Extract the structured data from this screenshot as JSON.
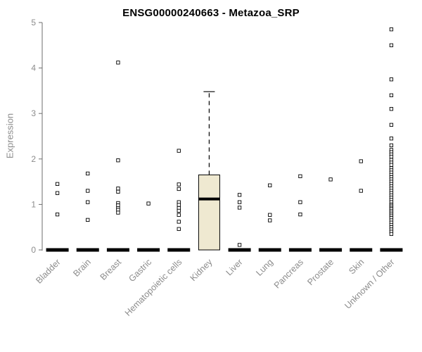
{
  "chart_data": {
    "type": "boxplot",
    "title": "ENSG00000240663 - Metazoa_SRP",
    "ylabel": "Expression",
    "ylim": [
      0,
      5
    ],
    "yticks": [
      0,
      1,
      2,
      3,
      4,
      5
    ],
    "grid": false,
    "legend": "none",
    "box_fill_color": "#EFE9D1",
    "box_stroke_color": "#000000",
    "axis_color": "#6e6e6e",
    "label_color": "#8c8c8c",
    "title_color": "#000000",
    "categories": [
      "Bladder",
      "Brain",
      "Breast",
      "Gastric",
      "Hematopoietic cells",
      "Kidney",
      "Liver",
      "Lung",
      "Pancreas",
      "Prostate",
      "Skin",
      "Unknown / Other"
    ],
    "boxes": [
      {
        "category": "Bladder",
        "median": 0,
        "q1": 0,
        "q3": 0,
        "whisker_low": 0,
        "whisker_high": 0,
        "outliers": [
          0.78,
          1.25,
          1.45
        ]
      },
      {
        "category": "Brain",
        "median": 0,
        "q1": 0,
        "q3": 0,
        "whisker_low": 0,
        "whisker_high": 0,
        "outliers": [
          0.66,
          1.05,
          1.3,
          1.68
        ]
      },
      {
        "category": "Breast",
        "median": 0,
        "q1": 0,
        "q3": 0,
        "whisker_low": 0,
        "whisker_high": 0,
        "outliers": [
          4.12,
          1.97,
          1.35,
          1.28,
          1.03,
          0.98,
          0.92,
          0.88,
          0.82
        ]
      },
      {
        "category": "Gastric",
        "median": 0,
        "q1": 0,
        "q3": 0,
        "whisker_low": 0,
        "whisker_high": 0,
        "outliers": [
          1.02
        ]
      },
      {
        "category": "Hematopoietic cells",
        "median": 0,
        "q1": 0,
        "q3": 0,
        "whisker_low": 0,
        "whisker_high": 0,
        "outliers": [
          2.18,
          1.44,
          1.34,
          1.05,
          0.99,
          0.92,
          0.86,
          0.77,
          0.62,
          0.46
        ]
      },
      {
        "category": "Kidney",
        "median": 1.12,
        "q1": 0,
        "q3": 1.65,
        "whisker_low": 0,
        "whisker_high": 3.48,
        "outliers": []
      },
      {
        "category": "Liver",
        "median": 0,
        "q1": 0,
        "q3": 0,
        "whisker_low": 0,
        "whisker_high": 0,
        "outliers": [
          1.21,
          1.05,
          0.93,
          0.11
        ]
      },
      {
        "category": "Lung",
        "median": 0,
        "q1": 0,
        "q3": 0,
        "whisker_low": 0,
        "whisker_high": 0,
        "outliers": [
          1.42,
          0.77,
          0.65
        ]
      },
      {
        "category": "Pancreas",
        "median": 0,
        "q1": 0,
        "q3": 0,
        "whisker_low": 0,
        "whisker_high": 0,
        "outliers": [
          1.62,
          1.05,
          0.78
        ]
      },
      {
        "category": "Prostate",
        "median": 0,
        "q1": 0,
        "q3": 0,
        "whisker_low": 0,
        "whisker_high": 0,
        "outliers": [
          1.55
        ]
      },
      {
        "category": "Skin",
        "median": 0,
        "q1": 0,
        "q3": 0,
        "whisker_low": 0,
        "whisker_high": 0,
        "outliers": [
          1.95,
          1.3
        ]
      },
      {
        "category": "Unknown / Other",
        "median": 0,
        "q1": 0,
        "q3": 0,
        "whisker_low": 0,
        "whisker_high": 0,
        "outliers": [
          4.85,
          4.5,
          3.75,
          3.4,
          3.1,
          2.75,
          2.45,
          2.3,
          2.2,
          2.15,
          2.1,
          2.05,
          1.98,
          1.92,
          1.87,
          1.8,
          1.75,
          1.7,
          1.65,
          1.6,
          1.55,
          1.5,
          1.45,
          1.4,
          1.35,
          1.3,
          1.25,
          1.2,
          1.15,
          1.1,
          1.05,
          1.0,
          0.97,
          0.93,
          0.9,
          0.86,
          0.82,
          0.78,
          0.74,
          0.7,
          0.65,
          0.6,
          0.55,
          0.5,
          0.45,
          0.4,
          0.35
        ]
      }
    ]
  }
}
